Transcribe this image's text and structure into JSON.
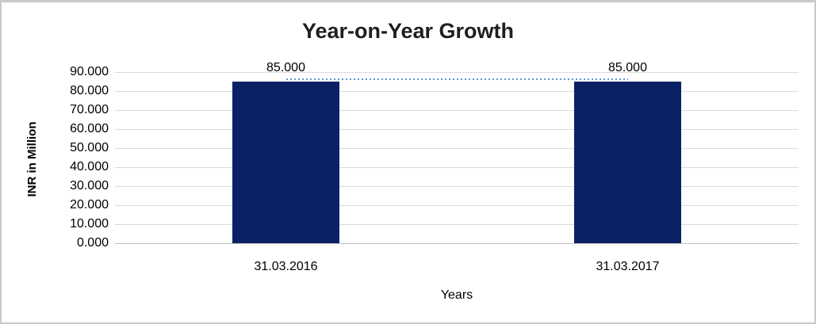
{
  "chart_data": {
    "type": "bar",
    "title": "Year-on-Year Growth",
    "xlabel": "Years",
    "ylabel": "INR in Million",
    "categories": [
      "31.03.2016",
      "31.03.2017"
    ],
    "values": [
      85.0,
      85.0
    ],
    "value_labels": [
      "85.000",
      "85.000"
    ],
    "series": [
      {
        "name": "INR in Million",
        "values": [
          85.0,
          85.0
        ]
      }
    ],
    "ylim": [
      0,
      90
    ],
    "y_tick_step": 10,
    "y_ticks": [
      0,
      10,
      20,
      30,
      40,
      50,
      60,
      70,
      80,
      90
    ],
    "y_tick_labels": [
      "0.000",
      "10.000",
      "20.000",
      "30.000",
      "40.000",
      "50.000",
      "60.000",
      "70.000",
      "80.000",
      "90.000"
    ],
    "grid": true,
    "legend": "none",
    "trendline": {
      "style": "dotted",
      "color": "#5B9BD5",
      "start_value": 85.0,
      "end_value": 85.0
    },
    "colors": {
      "bar": "#0A2265",
      "gridline": "#D9D9D9",
      "axis_line": "#BFBFBF",
      "title_text": "#1F1F1F",
      "label_text": "#000000",
      "chart_border": "#C9C9C9",
      "background": "#FFFFFF"
    }
  }
}
